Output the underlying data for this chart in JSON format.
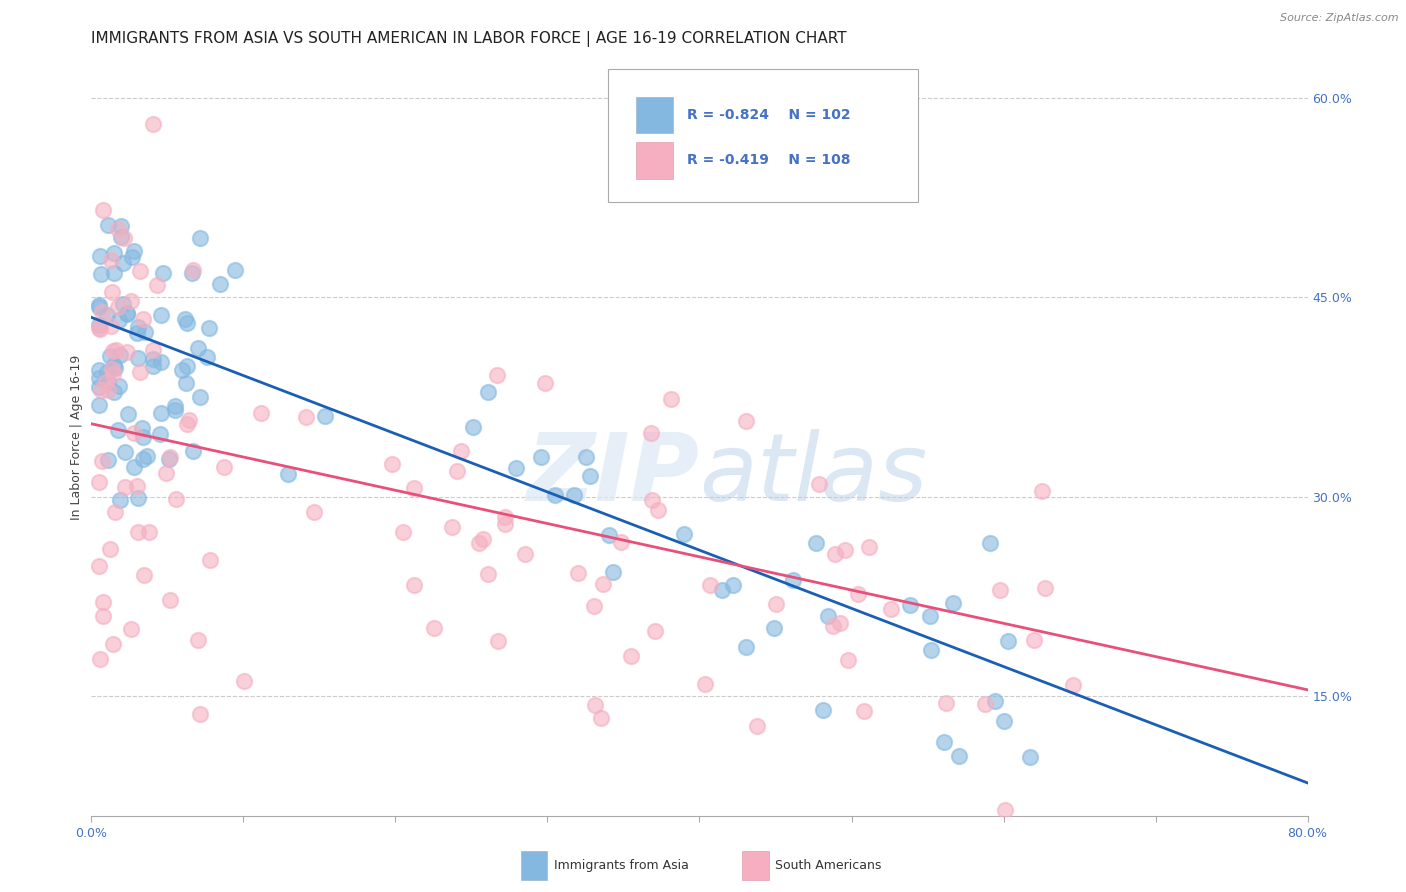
{
  "title": "IMMIGRANTS FROM ASIA VS SOUTH AMERICAN IN LABOR FORCE | AGE 16-19 CORRELATION CHART",
  "source": "Source: ZipAtlas.com",
  "ylabel": "In Labor Force | Age 16-19",
  "xlim": [
    0,
    0.8
  ],
  "ylim": [
    0.06,
    0.63
  ],
  "xtick_positions": [
    0.0,
    0.1,
    0.2,
    0.3,
    0.4,
    0.5,
    0.6,
    0.7,
    0.8
  ],
  "xticklabels_show": [
    "0.0%",
    "",
    "",
    "",
    "",
    "",
    "",
    "",
    "80.0%"
  ],
  "yticks_right": [
    0.15,
    0.3,
    0.45,
    0.6
  ],
  "ytick_right_labels": [
    "15.0%",
    "30.0%",
    "45.0%",
    "60.0%"
  ],
  "blue_color": "#85b8e0",
  "pink_color": "#f5afc0",
  "blue_line_color": "#1a5fb4",
  "pink_line_color": "#e8507a",
  "label_color": "#4472c4",
  "R_blue": -0.824,
  "N_blue": 102,
  "R_pink": -0.419,
  "N_pink": 108,
  "watermark_zip": "ZIP",
  "watermark_atlas": "atlas",
  "background_color": "#ffffff",
  "grid_color": "#cccccc",
  "title_fontsize": 11,
  "axis_label_fontsize": 9,
  "tick_fontsize": 9,
  "blue_line_start_y": 0.435,
  "blue_line_end_y": 0.085,
  "pink_line_start_y": 0.355,
  "pink_line_end_y": 0.155
}
